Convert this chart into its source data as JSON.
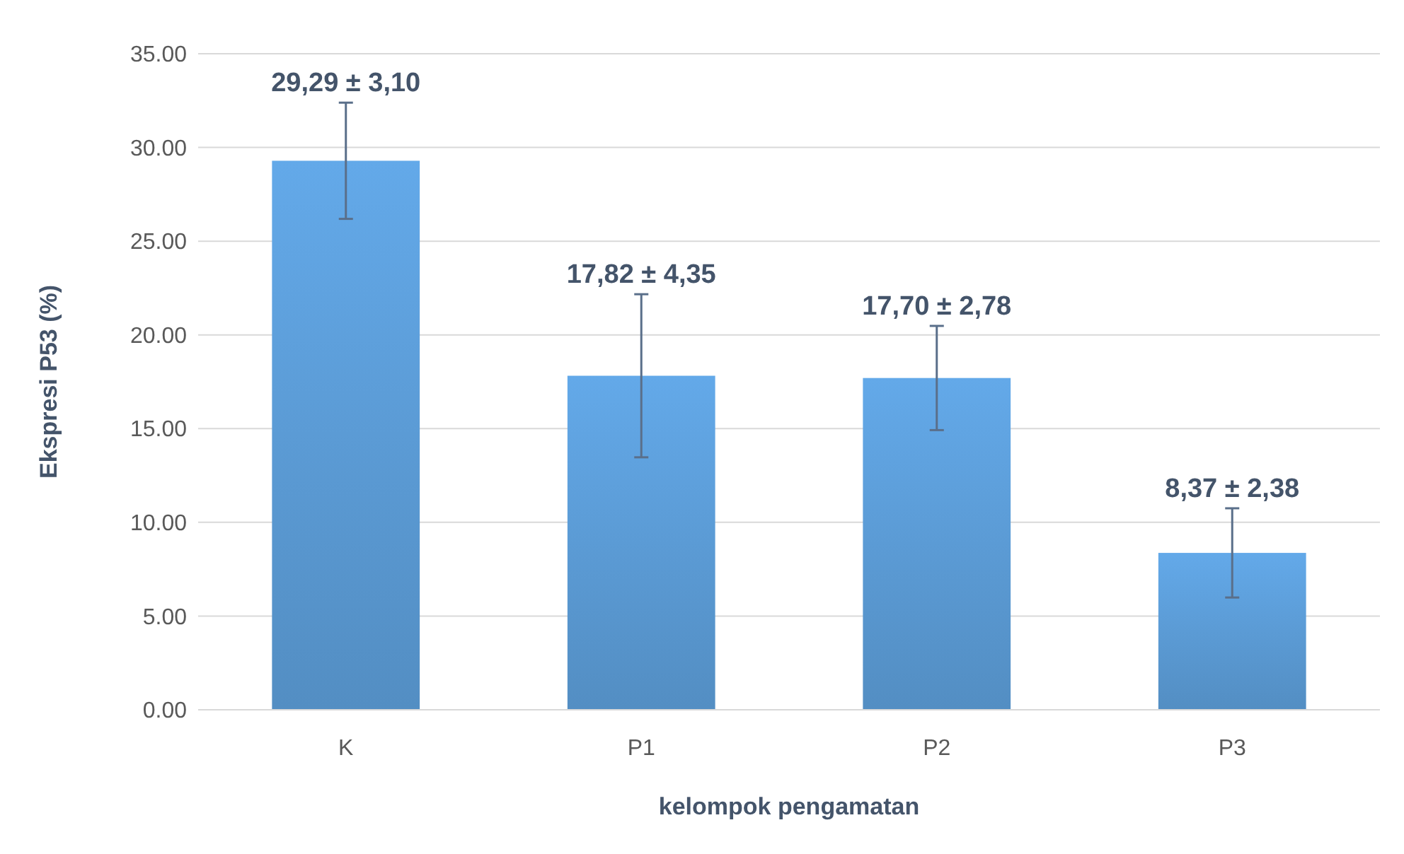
{
  "chart_data": {
    "type": "bar",
    "xlabel": "kelompok pengamatan",
    "ylabel": "Ekspresi P53 (%)",
    "categories": [
      "K",
      "P1",
      "P2",
      "P3"
    ],
    "values": [
      29.29,
      17.82,
      17.7,
      8.37
    ],
    "errors": [
      3.1,
      4.35,
      2.78,
      2.38
    ],
    "value_labels": [
      "29,29 ± 3,10",
      "17,82 ± 4,35",
      "17,70 ± 2,78",
      "8,37 ± 2,38"
    ],
    "color": "#5b9bd5",
    "ylim": [
      0,
      35
    ],
    "yticks": [
      {
        "value": 0,
        "label": "0.00"
      },
      {
        "value": 5,
        "label": "5.00"
      },
      {
        "value": 10,
        "label": "10.00"
      },
      {
        "value": 15,
        "label": "15.00"
      },
      {
        "value": 20,
        "label": "20.00"
      },
      {
        "value": 25,
        "label": "25.00"
      },
      {
        "value": 30,
        "label": "30.00"
      },
      {
        "value": 35,
        "label": "35.00"
      }
    ],
    "grid": "y"
  }
}
